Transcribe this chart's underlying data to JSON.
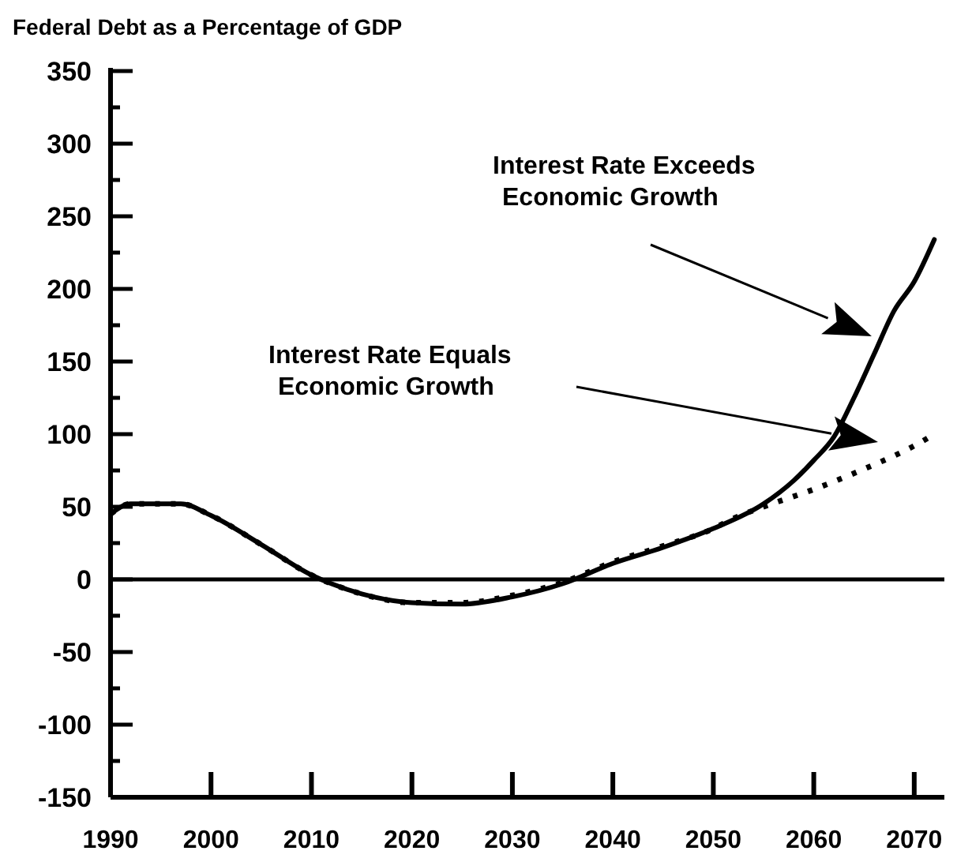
{
  "chart_data": {
    "type": "line",
    "title": "Federal Debt as a Percentage of GDP",
    "xlim": [
      1990,
      2073
    ],
    "xticks": [
      1990,
      2000,
      2010,
      2020,
      2030,
      2040,
      2050,
      2060,
      2070
    ],
    "ylim": [
      -150,
      350
    ],
    "yticks": [
      -150,
      {
        "value": -125,
        "label": null
      },
      -100,
      {
        "value": -75,
        "label": null
      },
      -50,
      {
        "value": -25,
        "label": null
      },
      0,
      {
        "value": 25,
        "label": null
      },
      50,
      {
        "value": 75,
        "label": null
      },
      100,
      {
        "value": 125,
        "label": null
      },
      150,
      {
        "value": 175,
        "label": null
      },
      200,
      {
        "value": 225,
        "label": null
      },
      250,
      {
        "value": 275,
        "label": null
      },
      300,
      {
        "value": 325,
        "label": null
      },
      350
    ],
    "grid": false,
    "series": [
      {
        "color": "#000000",
        "line_style": "solid",
        "x": [
          1990,
          1992,
          1997,
          2000,
          2005,
          2010,
          2012,
          2015,
          2020,
          2025,
          2030,
          2035,
          2040,
          2045,
          2050,
          2055,
          2058,
          2060,
          2062,
          2064,
          2066,
          2068,
          2070,
          2072
        ],
        "values": [
          45,
          52,
          52,
          44,
          24,
          3,
          -3,
          -10,
          -16,
          -17,
          -12,
          -3,
          11,
          22,
          35,
          52,
          68,
          82,
          98,
          125,
          155,
          185,
          205,
          234
        ]
      },
      {
        "color": "#000000",
        "line_style": "dotted",
        "x": [
          1990,
          1992,
          1997,
          2000,
          2005,
          2010,
          2012,
          2015,
          2020,
          2025,
          2030,
          2035,
          2040,
          2045,
          2050,
          2052,
          2055,
          2060,
          2065,
          2070,
          2072
        ],
        "values": [
          45,
          52,
          52,
          44,
          24,
          3,
          -3,
          -10,
          -16,
          -16,
          -11,
          -2,
          12,
          23,
          35,
          42,
          50,
          62,
          76,
          92,
          100
        ]
      }
    ],
    "ref_lines": [
      {
        "axis": "y",
        "value": 0
      }
    ],
    "annotations": [
      "Interest Rate Exceeds\nEconomic Growth",
      "Interest Rate Equals\nEconomic Growth"
    ]
  }
}
